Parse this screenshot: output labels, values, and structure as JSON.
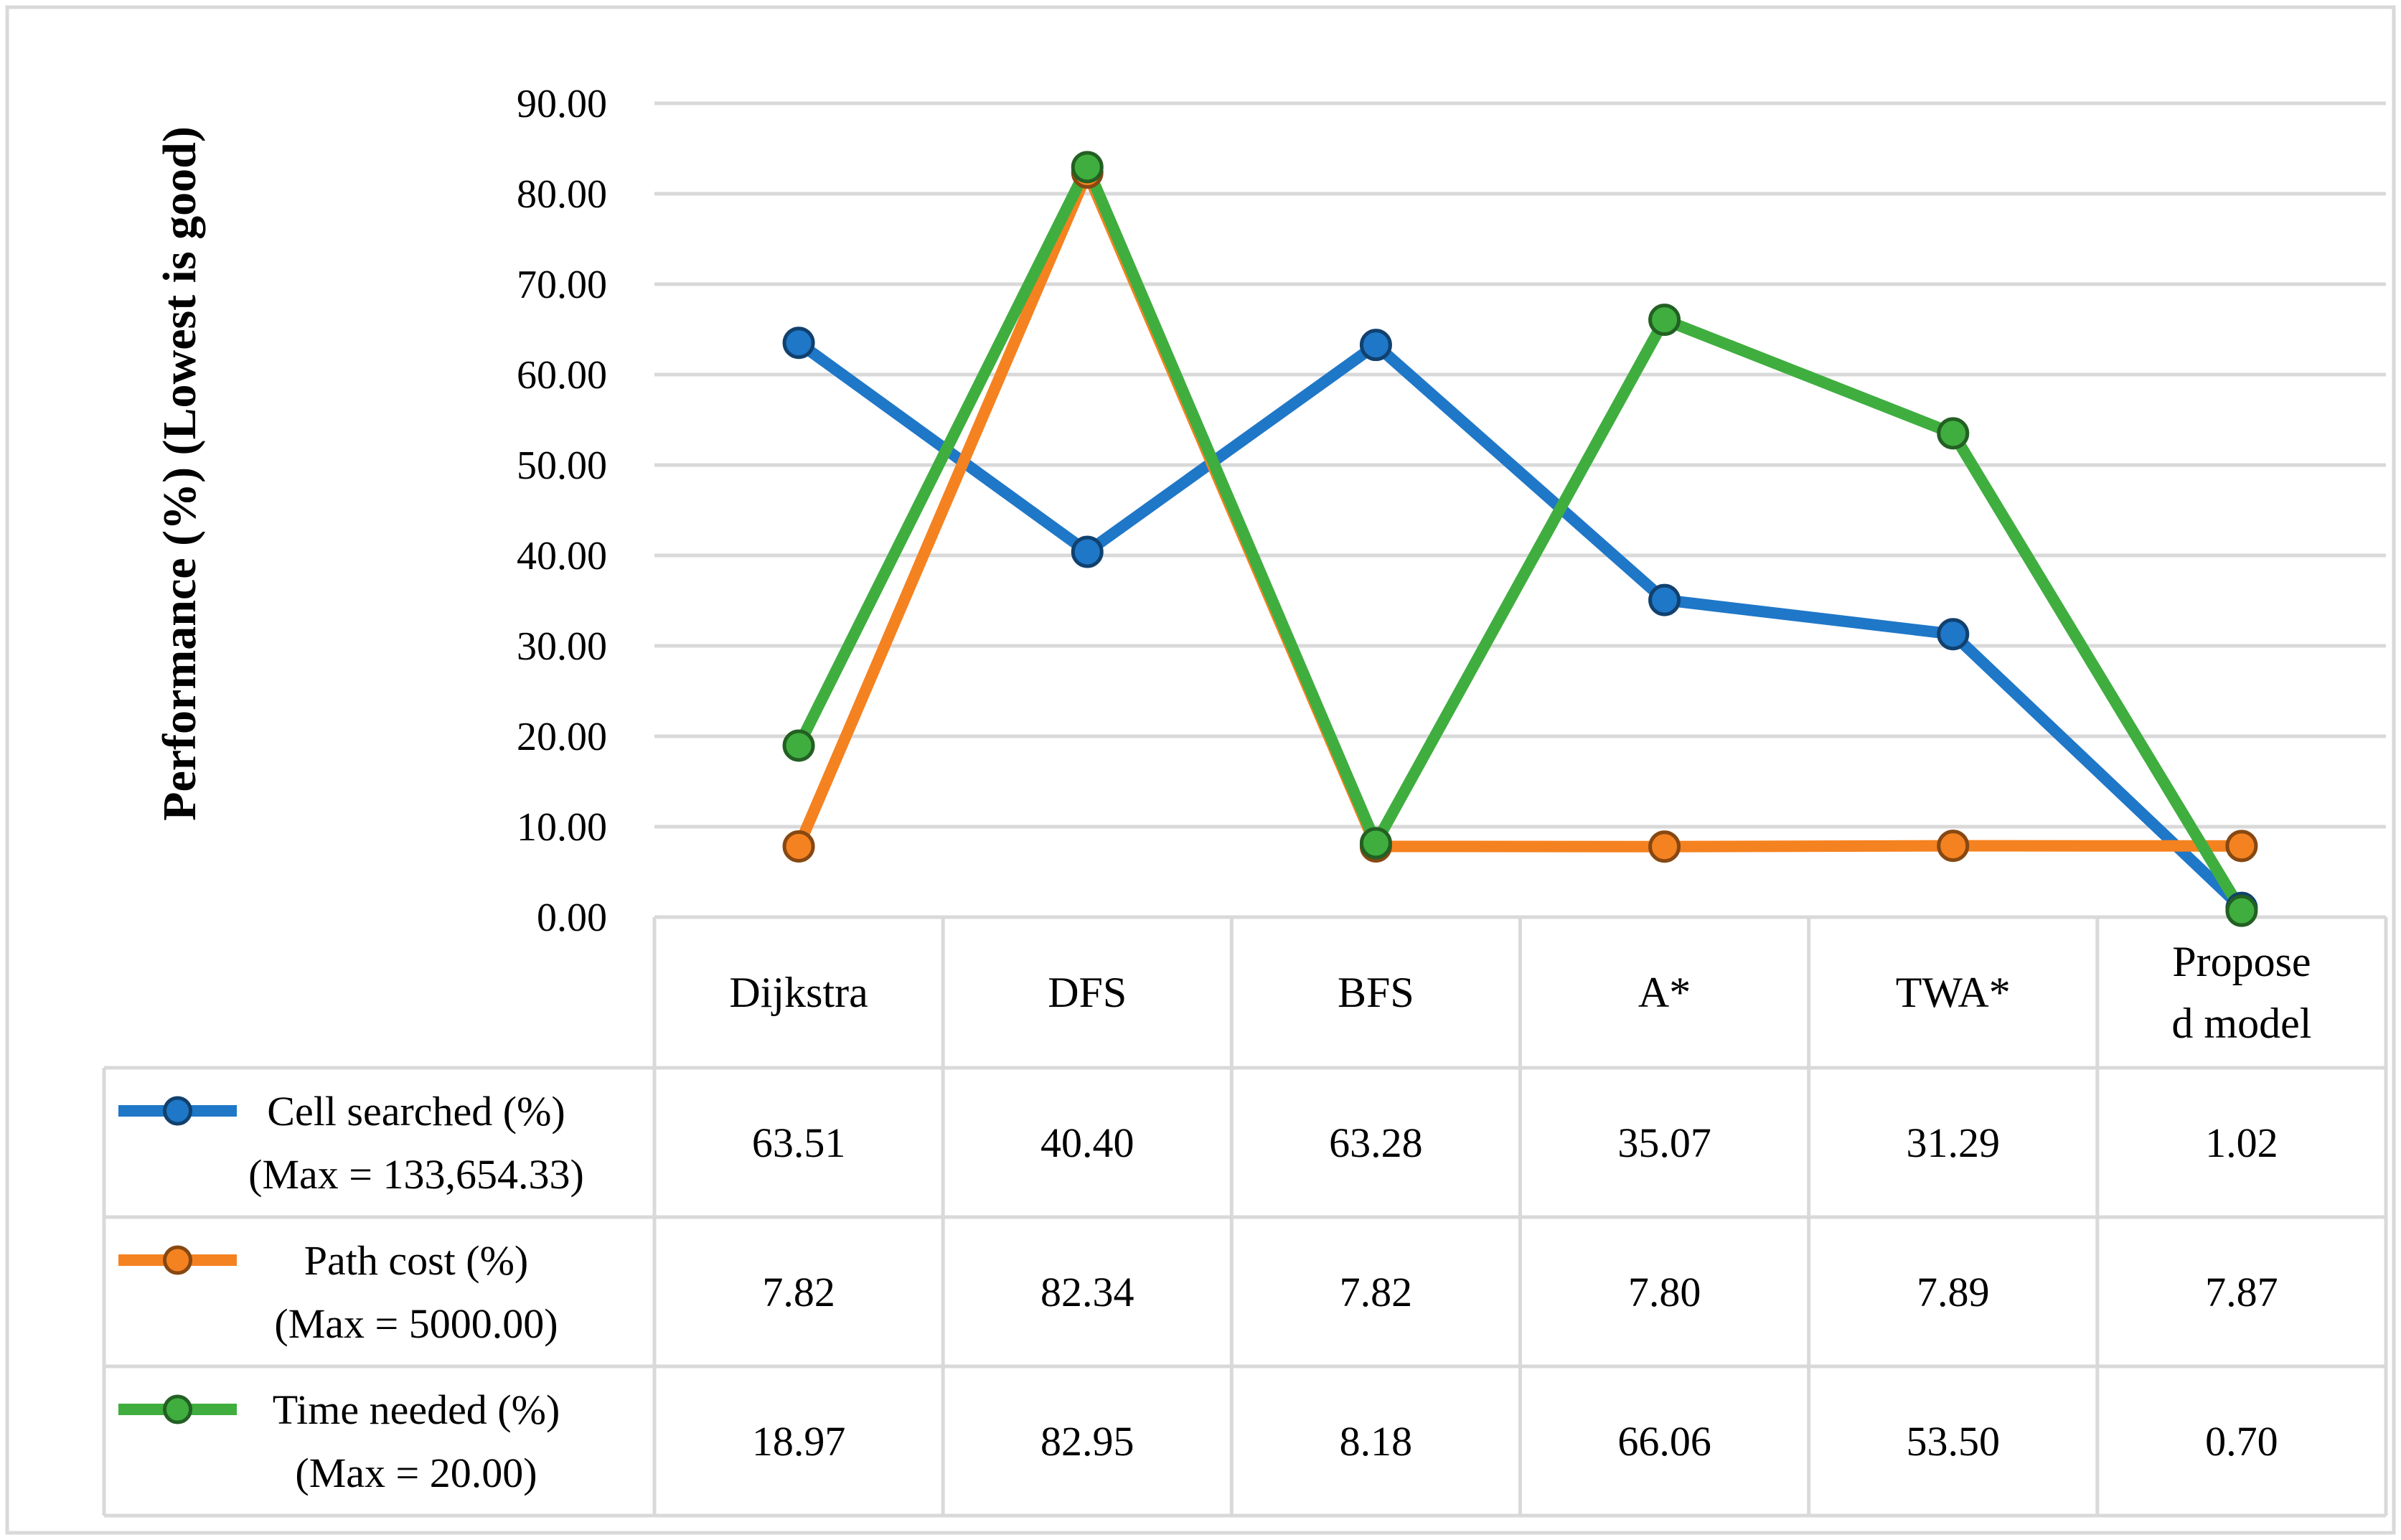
{
  "chart_data": {
    "type": "line",
    "title": "",
    "xlabel": "",
    "ylabel": "Performance (%) (Lowest is good)",
    "ylim": [
      0,
      90
    ],
    "yticks": [
      "0.00",
      "10.00",
      "20.00",
      "30.00",
      "40.00",
      "50.00",
      "60.00",
      "70.00",
      "80.00",
      "90.00"
    ],
    "grid": true,
    "categories": [
      "Dijkstra",
      "DFS",
      "BFS",
      "A*",
      "TWA*",
      "Proposed model"
    ],
    "category_display": [
      [
        "Dijkstra"
      ],
      [
        "DFS"
      ],
      [
        "BFS"
      ],
      [
        "A*"
      ],
      [
        "TWA*"
      ],
      [
        "Propose",
        "d model"
      ]
    ],
    "series": [
      {
        "name": "Cell searched (%)",
        "subtitle": "(Max = 133,654.33)",
        "color": "#1f77c8",
        "values": [
          63.51,
          40.4,
          63.28,
          35.07,
          31.29,
          1.02
        ],
        "labels": [
          "63.51",
          "40.40",
          "63.28",
          "35.07",
          "31.29",
          "1.02"
        ]
      },
      {
        "name": "Path cost (%)",
        "subtitle": "(Max = 5000.00)",
        "color": "#f58220",
        "values": [
          7.82,
          82.34,
          7.82,
          7.8,
          7.89,
          7.87
        ],
        "labels": [
          "7.82",
          "82.34",
          "7.82",
          "7.80",
          "7.89",
          "7.87"
        ]
      },
      {
        "name": "Time needed (%)",
        "subtitle": "(Max = 20.00)",
        "color": "#3fae3f",
        "values": [
          18.97,
          82.95,
          8.18,
          66.06,
          53.5,
          0.7
        ],
        "labels": [
          "18.97",
          "82.95",
          "8.18",
          "66.06",
          "53.50",
          "0.70"
        ]
      }
    ]
  }
}
